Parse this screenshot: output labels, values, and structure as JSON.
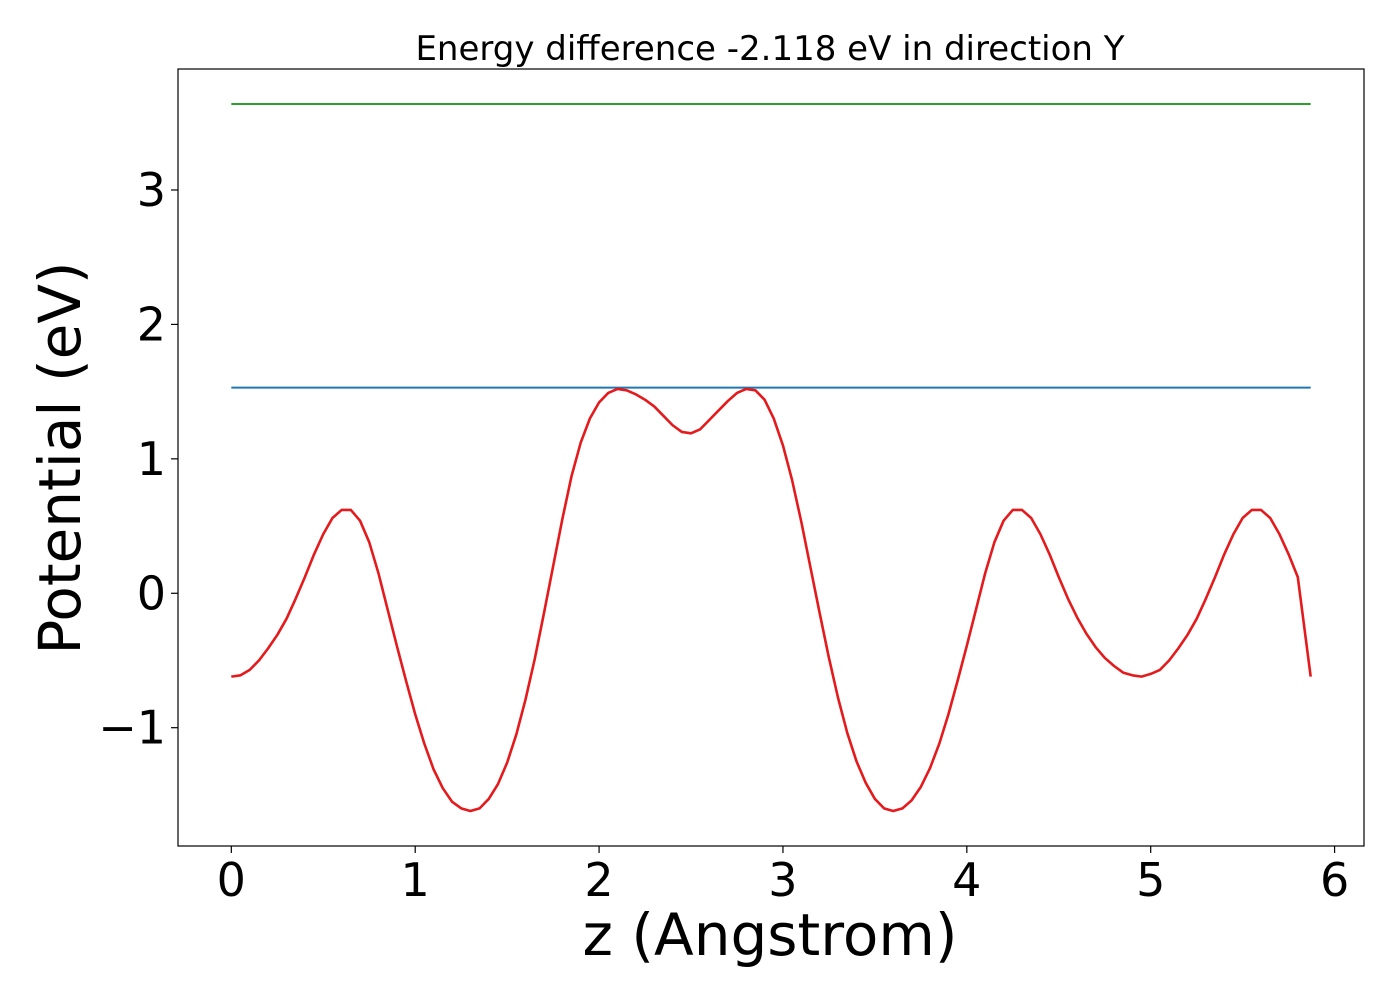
{
  "chart_data": {
    "type": "line",
    "title": "Energy difference -2.118 eV in direction Y",
    "xlabel": "z (Angstrom)",
    "ylabel": "Potential (eV)",
    "xlim": [
      -0.29,
      6.16
    ],
    "ylim": [
      -1.88,
      3.9
    ],
    "xticks": [
      0,
      1,
      2,
      3,
      4,
      5,
      6
    ],
    "xtick_labels": [
      "0",
      "1",
      "2",
      "3",
      "4",
      "5",
      "6"
    ],
    "yticks": [
      -1,
      0,
      1,
      2,
      3
    ],
    "ytick_labels": [
      "−1",
      "0",
      "1",
      "2",
      "3"
    ],
    "grid": false,
    "series": [
      {
        "color": "#2ca02c",
        "x": [
          0,
          5.87
        ],
        "values": [
          3.64,
          3.64
        ]
      },
      {
        "color": "#1f77b4",
        "x": [
          0,
          5.87
        ],
        "values": [
          1.53,
          1.53
        ]
      },
      {
        "color": "#e41a1c",
        "x": [
          0.0,
          0.05,
          0.1,
          0.15,
          0.2,
          0.25,
          0.3,
          0.35,
          0.4,
          0.45,
          0.5,
          0.55,
          0.6,
          0.65,
          0.7,
          0.75,
          0.8,
          0.85,
          0.9,
          0.95,
          1.0,
          1.05,
          1.1,
          1.15,
          1.2,
          1.25,
          1.3,
          1.35,
          1.4,
          1.45,
          1.5,
          1.55,
          1.6,
          1.65,
          1.7,
          1.75,
          1.8,
          1.85,
          1.9,
          1.95,
          2.0,
          2.05,
          2.1,
          2.15,
          2.2,
          2.25,
          2.3,
          2.35,
          2.4,
          2.45,
          2.5,
          2.55,
          2.6,
          2.65,
          2.7,
          2.75,
          2.8,
          2.85,
          2.9,
          2.95,
          3.0,
          3.05,
          3.1,
          3.15,
          3.2,
          3.25,
          3.3,
          3.35,
          3.4,
          3.45,
          3.5,
          3.55,
          3.6,
          3.65,
          3.7,
          3.75,
          3.8,
          3.85,
          3.9,
          3.95,
          4.0,
          4.05,
          4.1,
          4.15,
          4.2,
          4.25,
          4.3,
          4.35,
          4.4,
          4.45,
          4.5,
          4.55,
          4.6,
          4.65,
          4.7,
          4.75,
          4.8,
          4.85,
          4.9,
          4.95,
          5.0,
          5.05,
          5.1,
          5.15,
          5.2,
          5.25,
          5.3,
          5.35,
          5.4,
          5.45,
          5.5,
          5.55,
          5.6,
          5.65,
          5.7,
          5.75,
          5.8,
          5.87
        ],
        "values": [
          -0.62,
          -0.61,
          -0.57,
          -0.5,
          -0.41,
          -0.31,
          -0.19,
          -0.04,
          0.12,
          0.29,
          0.44,
          0.56,
          0.62,
          0.62,
          0.54,
          0.38,
          0.15,
          -0.12,
          -0.39,
          -0.65,
          -0.9,
          -1.12,
          -1.31,
          -1.45,
          -1.55,
          -1.6,
          -1.62,
          -1.6,
          -1.53,
          -1.42,
          -1.26,
          -1.05,
          -0.79,
          -0.49,
          -0.15,
          0.2,
          0.55,
          0.87,
          1.12,
          1.3,
          1.42,
          1.49,
          1.52,
          1.51,
          1.48,
          1.44,
          1.39,
          1.32,
          1.25,
          1.2,
          1.19,
          1.22,
          1.29,
          1.36,
          1.43,
          1.49,
          1.52,
          1.51,
          1.44,
          1.3,
          1.1,
          0.84,
          0.53,
          0.19,
          -0.15,
          -0.48,
          -0.78,
          -1.04,
          -1.25,
          -1.41,
          -1.53,
          -1.6,
          -1.62,
          -1.6,
          -1.54,
          -1.44,
          -1.3,
          -1.12,
          -0.9,
          -0.65,
          -0.39,
          -0.12,
          0.15,
          0.38,
          0.54,
          0.62,
          0.62,
          0.56,
          0.44,
          0.29,
          0.12,
          -0.04,
          -0.18,
          -0.3,
          -0.4,
          -0.48,
          -0.54,
          -0.59,
          -0.61,
          -0.62,
          -0.6,
          -0.57,
          -0.5,
          -0.41,
          -0.31,
          -0.19,
          -0.04,
          0.12,
          0.29,
          0.44,
          0.56,
          0.62,
          0.62,
          0.56,
          0.44,
          0.29,
          0.12,
          -0.62
        ]
      }
    ]
  }
}
